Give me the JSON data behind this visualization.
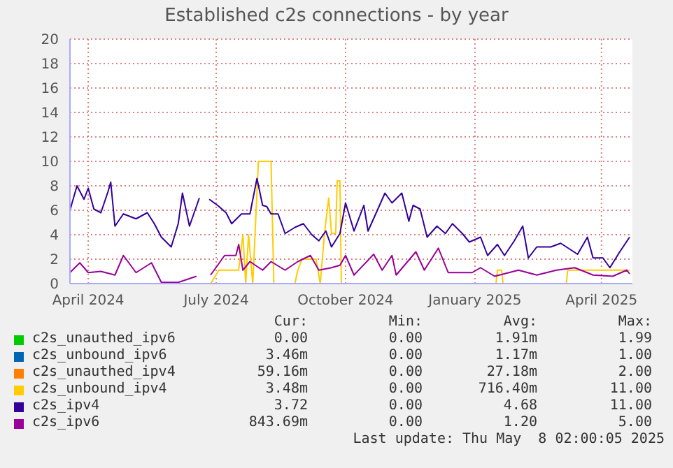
{
  "chart_data": {
    "type": "line",
    "title": "Established c2s connections - by year",
    "xlim": [
      "2024-03-19",
      "2025-04-23"
    ],
    "xticks": [
      {
        "value": "2024-04-01",
        "label": "April 2024"
      },
      {
        "value": "2024-07-01",
        "label": "July 2024"
      },
      {
        "value": "2024-10-01",
        "label": "October 2024"
      },
      {
        "value": "2025-01-01",
        "label": "January 2025"
      },
      {
        "value": "2025-04-01",
        "label": "April 2025"
      }
    ],
    "ylim": [
      0,
      20
    ],
    "yticks": [
      0,
      2,
      4,
      6,
      8,
      10,
      12,
      14,
      16,
      18,
      20
    ],
    "grid": true,
    "legend": "bottom",
    "marker": "none",
    "line_style": "solid",
    "series": [
      {
        "name": "c2s_unauthed_ipv6",
        "color": "#00cc00"
      },
      {
        "name": "c2s_unbound_ipv6",
        "color": "#0066b3"
      },
      {
        "name": "c2s_unauthed_ipv4",
        "color": "#ff8000"
      },
      {
        "name": "c2s_unbound_ipv4",
        "color": "#ffcc00",
        "x": [
          "2024-03-19",
          "2024-06-19",
          "2024-06-24",
          "2024-06-27",
          "2024-07-03",
          "2024-07-17",
          "2024-07-20",
          "2024-07-22",
          "2024-07-24",
          "2024-07-27",
          "2024-07-31",
          "2024-08-09",
          "2024-08-11",
          "2024-08-26",
          "2024-08-28",
          "2024-08-31",
          "2024-09-10",
          "2024-09-13",
          "2024-09-16",
          "2024-09-19",
          "2024-09-21",
          "2024-09-24",
          "2024-09-25",
          "2024-09-27",
          "2024-09-28",
          "2025-01-16",
          "2025-01-17",
          "2025-01-20",
          "2025-01-21",
          "2025-03-07",
          "2025-03-08",
          "2025-04-21"
        ],
        "values": [
          0,
          0,
          null,
          0,
          1.1,
          1.1,
          4,
          0,
          4,
          0,
          10,
          10,
          0,
          0,
          1.1,
          2,
          2,
          0,
          4.1,
          7,
          4.1,
          4.1,
          8.4,
          8.4,
          0,
          0,
          1.1,
          1.1,
          0,
          0,
          1.1,
          1.1
        ]
      },
      {
        "name": "c2s_ipv4",
        "color": "#330099",
        "x": [
          "2024-03-19",
          "2024-03-24",
          "2024-03-29",
          "2024-04-01",
          "2024-04-05",
          "2024-04-10",
          "2024-04-15",
          "2024-04-17",
          "2024-04-20",
          "2024-04-26",
          "2024-05-05",
          "2024-05-13",
          "2024-05-18",
          "2024-05-23",
          "2024-05-30",
          "2024-06-04",
          "2024-06-07",
          "2024-06-12",
          "2024-06-19",
          "2024-06-24",
          "2024-06-26",
          "2024-07-02",
          "2024-07-08",
          "2024-07-12",
          "2024-07-19",
          "2024-07-25",
          "2024-07-30",
          "2024-08-03",
          "2024-08-06",
          "2024-08-09",
          "2024-08-14",
          "2024-08-19",
          "2024-08-26",
          "2024-09-01",
          "2024-09-07",
          "2024-09-12",
          "2024-09-17",
          "2024-09-21",
          "2024-09-27",
          "2024-10-01",
          "2024-10-07",
          "2024-10-14",
          "2024-10-17",
          "2024-10-24",
          "2024-10-29",
          "2024-11-03",
          "2024-11-10",
          "2024-11-15",
          "2024-11-18",
          "2024-11-23",
          "2024-11-28",
          "2024-12-05",
          "2024-12-11",
          "2024-12-16",
          "2024-12-23",
          "2024-12-28",
          "2025-01-05",
          "2025-01-10",
          "2025-01-17",
          "2025-01-22",
          "2025-01-29",
          "2025-02-04",
          "2025-02-08",
          "2025-02-14",
          "2025-02-24",
          "2025-03-03",
          "2025-03-15",
          "2025-03-22",
          "2025-03-26",
          "2025-04-02",
          "2025-04-07",
          "2025-04-14",
          "2025-04-21"
        ],
        "values": [
          6.0,
          8.0,
          6.9,
          7.8,
          6.1,
          5.8,
          7.5,
          8.3,
          4.7,
          5.7,
          5.3,
          5.8,
          4.9,
          3.8,
          3.0,
          4.9,
          7.4,
          4.7,
          7.0,
          null,
          6.9,
          6.4,
          5.8,
          4.9,
          5.7,
          5.7,
          8.6,
          6.4,
          6.3,
          5.7,
          5.7,
          4.1,
          4.6,
          4.9,
          4.0,
          3.5,
          4.3,
          3.0,
          4.1,
          6.6,
          4.3,
          6.4,
          4.3,
          6.1,
          7.4,
          6.6,
          7.4,
          5.1,
          6.4,
          6.1,
          3.8,
          4.7,
          4.1,
          4.9,
          4.1,
          3.4,
          3.8,
          2.3,
          3.2,
          2.3,
          3.5,
          4.7,
          2.1,
          3.0,
          3.0,
          3.3,
          2.4,
          3.8,
          2.1,
          2.1,
          1.3,
          2.6,
          3.8
        ]
      },
      {
        "name": "c2s_ipv6",
        "color": "#990099",
        "x": [
          "2024-03-19",
          "2024-03-26",
          "2024-04-01",
          "2024-04-10",
          "2024-04-20",
          "2024-04-26",
          "2024-05-05",
          "2024-05-16",
          "2024-05-23",
          "2024-06-04",
          "2024-06-17",
          "2024-06-24",
          "2024-06-27",
          "2024-07-07",
          "2024-07-15",
          "2024-07-17",
          "2024-07-20",
          "2024-07-25",
          "2024-08-03",
          "2024-08-09",
          "2024-08-19",
          "2024-08-28",
          "2024-09-06",
          "2024-09-12",
          "2024-09-21",
          "2024-09-27",
          "2024-10-01",
          "2024-10-07",
          "2024-10-21",
          "2024-10-27",
          "2024-11-03",
          "2024-11-06",
          "2024-11-20",
          "2024-11-26",
          "2024-12-06",
          "2024-12-13",
          "2024-12-30",
          "2025-01-05",
          "2025-01-15",
          "2025-02-01",
          "2025-02-14",
          "2025-02-28",
          "2025-03-13",
          "2025-03-26",
          "2025-04-09",
          "2025-04-19",
          "2025-04-21"
        ],
        "values": [
          0.9,
          1.7,
          0.9,
          1.0,
          0.7,
          2.3,
          0.9,
          1.7,
          0.1,
          0.1,
          0.6,
          null,
          0.7,
          2.3,
          2.3,
          3.2,
          1.1,
          1.8,
          1.1,
          1.8,
          1.1,
          1.8,
          2.3,
          1.1,
          1.3,
          1.5,
          2.3,
          0.7,
          2.4,
          1.1,
          2.3,
          0.7,
          2.6,
          1.1,
          2.9,
          0.9,
          0.9,
          1.3,
          0.6,
          1.1,
          0.7,
          1.1,
          1.3,
          0.7,
          0.6,
          1.1,
          0.8
        ]
      }
    ],
    "annotations": [
      "Cur:",
      "Min:",
      "Avg:",
      "Max:",
      "0.00",
      "0.00",
      "1.91m",
      "1.99",
      "3.46m",
      "0.00",
      "1.17m",
      "1.00",
      "59.16m",
      "0.00",
      "27.18m",
      "2.00",
      "3.48m",
      "0.00",
      "716.40m",
      "11.00",
      "3.72",
      "0.00",
      "4.68",
      "11.00",
      "843.69m",
      "0.00",
      "1.20",
      "5.00",
      "Last update: Thu May  8 02:00:05 2025"
    ]
  }
}
